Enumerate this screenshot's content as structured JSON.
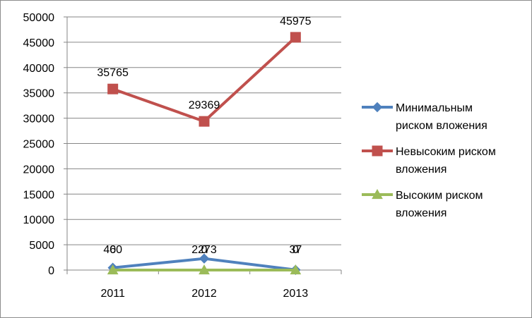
{
  "chart_data": {
    "type": "line",
    "categories": [
      "2011",
      "2012",
      "2013"
    ],
    "ylim": [
      0,
      50000
    ],
    "yticks": [
      0,
      5000,
      10000,
      15000,
      20000,
      25000,
      30000,
      35000,
      40000,
      45000,
      50000
    ],
    "grid": true,
    "legend_position": "right",
    "series": [
      {
        "name": "Минимальным риском вложения",
        "legend_lines": [
          "Минимальным",
          "риском вложения"
        ],
        "values": [
          460,
          2273,
          37
        ],
        "color": "#4f81bd",
        "marker": "diamond"
      },
      {
        "name": "Невысоким риском вложения",
        "legend_lines": [
          "Невысоким риском",
          "вложения"
        ],
        "values": [
          35765,
          29369,
          45975
        ],
        "color": "#c0504d",
        "marker": "square"
      },
      {
        "name": "Высоким риском вложения",
        "legend_lines": [
          "Высоким риском",
          "вложения"
        ],
        "values": [
          0,
          0,
          0
        ],
        "color": "#9bbb59",
        "marker": "triangle"
      }
    ]
  }
}
